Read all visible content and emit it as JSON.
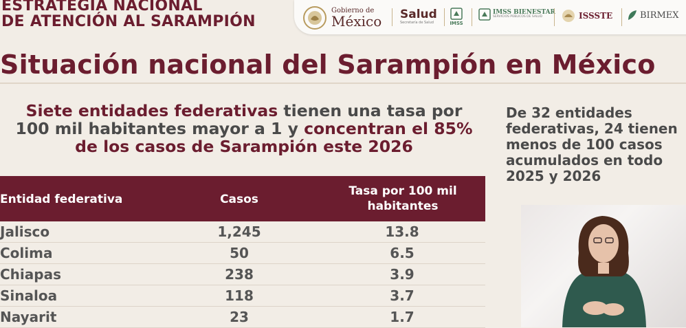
{
  "header": {
    "title_line1": "ESTRATEGIA NACIONAL",
    "title_line2": "DE ATENCIÓN AL SARAMPIÓN"
  },
  "logos": {
    "gobierno_small": "Gobierno de",
    "gobierno_big": "México",
    "salud": "Salud",
    "salud_sub": "Secretaría de Salud",
    "imss": "IMSS",
    "imss_bienestar": "IMSS BIENESTAR",
    "imss_bienestar_sub": "SERVICIOS PÚBLICOS DE SALUD",
    "issste": "ISSSTE",
    "birmex": "BIRMEX"
  },
  "main_title": "Situación nacional del Sarampión en México",
  "headline": {
    "part1": "Siete entidades federativas",
    "part2": " tienen una tasa por 100 mil habitantes mayor a 1 y ",
    "part3": "concentran el 85% de los casos de Sarampión este 2026"
  },
  "side_note": "De 32 entidades federativas, 24 tienen menos de 100 casos acumulados en todo 2025 y 2026",
  "table": {
    "headers": [
      "Entidad federativa",
      "Casos",
      "Tasa por 100 mil habitantes"
    ],
    "rows": [
      [
        "Jalisco",
        "1,245",
        "13.8"
      ],
      [
        "Colima",
        "50",
        "6.5"
      ],
      [
        "Chiapas",
        "238",
        "3.9"
      ],
      [
        "Sinaloa",
        "118",
        "3.7"
      ],
      [
        "Nayarit",
        "23",
        "1.7"
      ]
    ]
  },
  "colors": {
    "brand": "#6b1d2f",
    "gold": "#b89b5e",
    "background": "#f2ede6"
  }
}
